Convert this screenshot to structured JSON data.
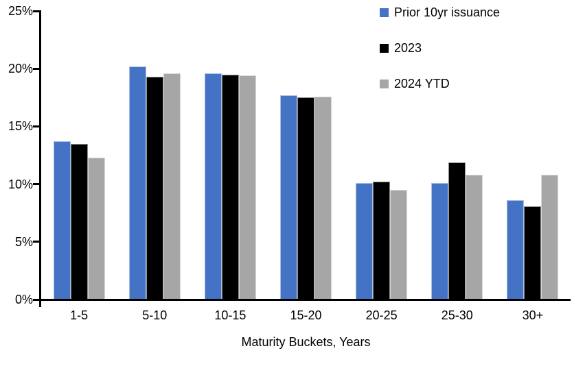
{
  "chart_data": {
    "type": "bar",
    "title": "",
    "xlabel": "Maturity Buckets, Years",
    "ylabel": "",
    "ylim": [
      0,
      25
    ],
    "y_ticks": [
      {
        "value": 0,
        "label": "0%"
      },
      {
        "value": 5,
        "label": "5%"
      },
      {
        "value": 10,
        "label": "10%"
      },
      {
        "value": 15,
        "label": "15%"
      },
      {
        "value": 20,
        "label": "20%"
      },
      {
        "value": 25,
        "label": "25%"
      }
    ],
    "grid": false,
    "legend_position": "top-right",
    "categories": [
      "1-5",
      "5-10",
      "10-15",
      "15-20",
      "20-25",
      "25-30",
      "30+"
    ],
    "series": [
      {
        "name": "Prior 10yr issuance",
        "color": "#4472C4",
        "values": [
          13.7,
          20.2,
          19.6,
          17.7,
          10.1,
          10.1,
          8.6
        ]
      },
      {
        "name": "2023",
        "color": "#000000",
        "values": [
          13.5,
          19.3,
          19.5,
          17.5,
          10.2,
          11.9,
          8.1
        ]
      },
      {
        "name": "2024 YTD",
        "color": "#A6A6A6",
        "values": [
          12.3,
          19.6,
          19.4,
          17.6,
          9.5,
          10.8,
          10.8
        ]
      }
    ],
    "colors": {
      "axis": "#000000",
      "background": "#FFFFFF",
      "text": "#000000"
    }
  }
}
